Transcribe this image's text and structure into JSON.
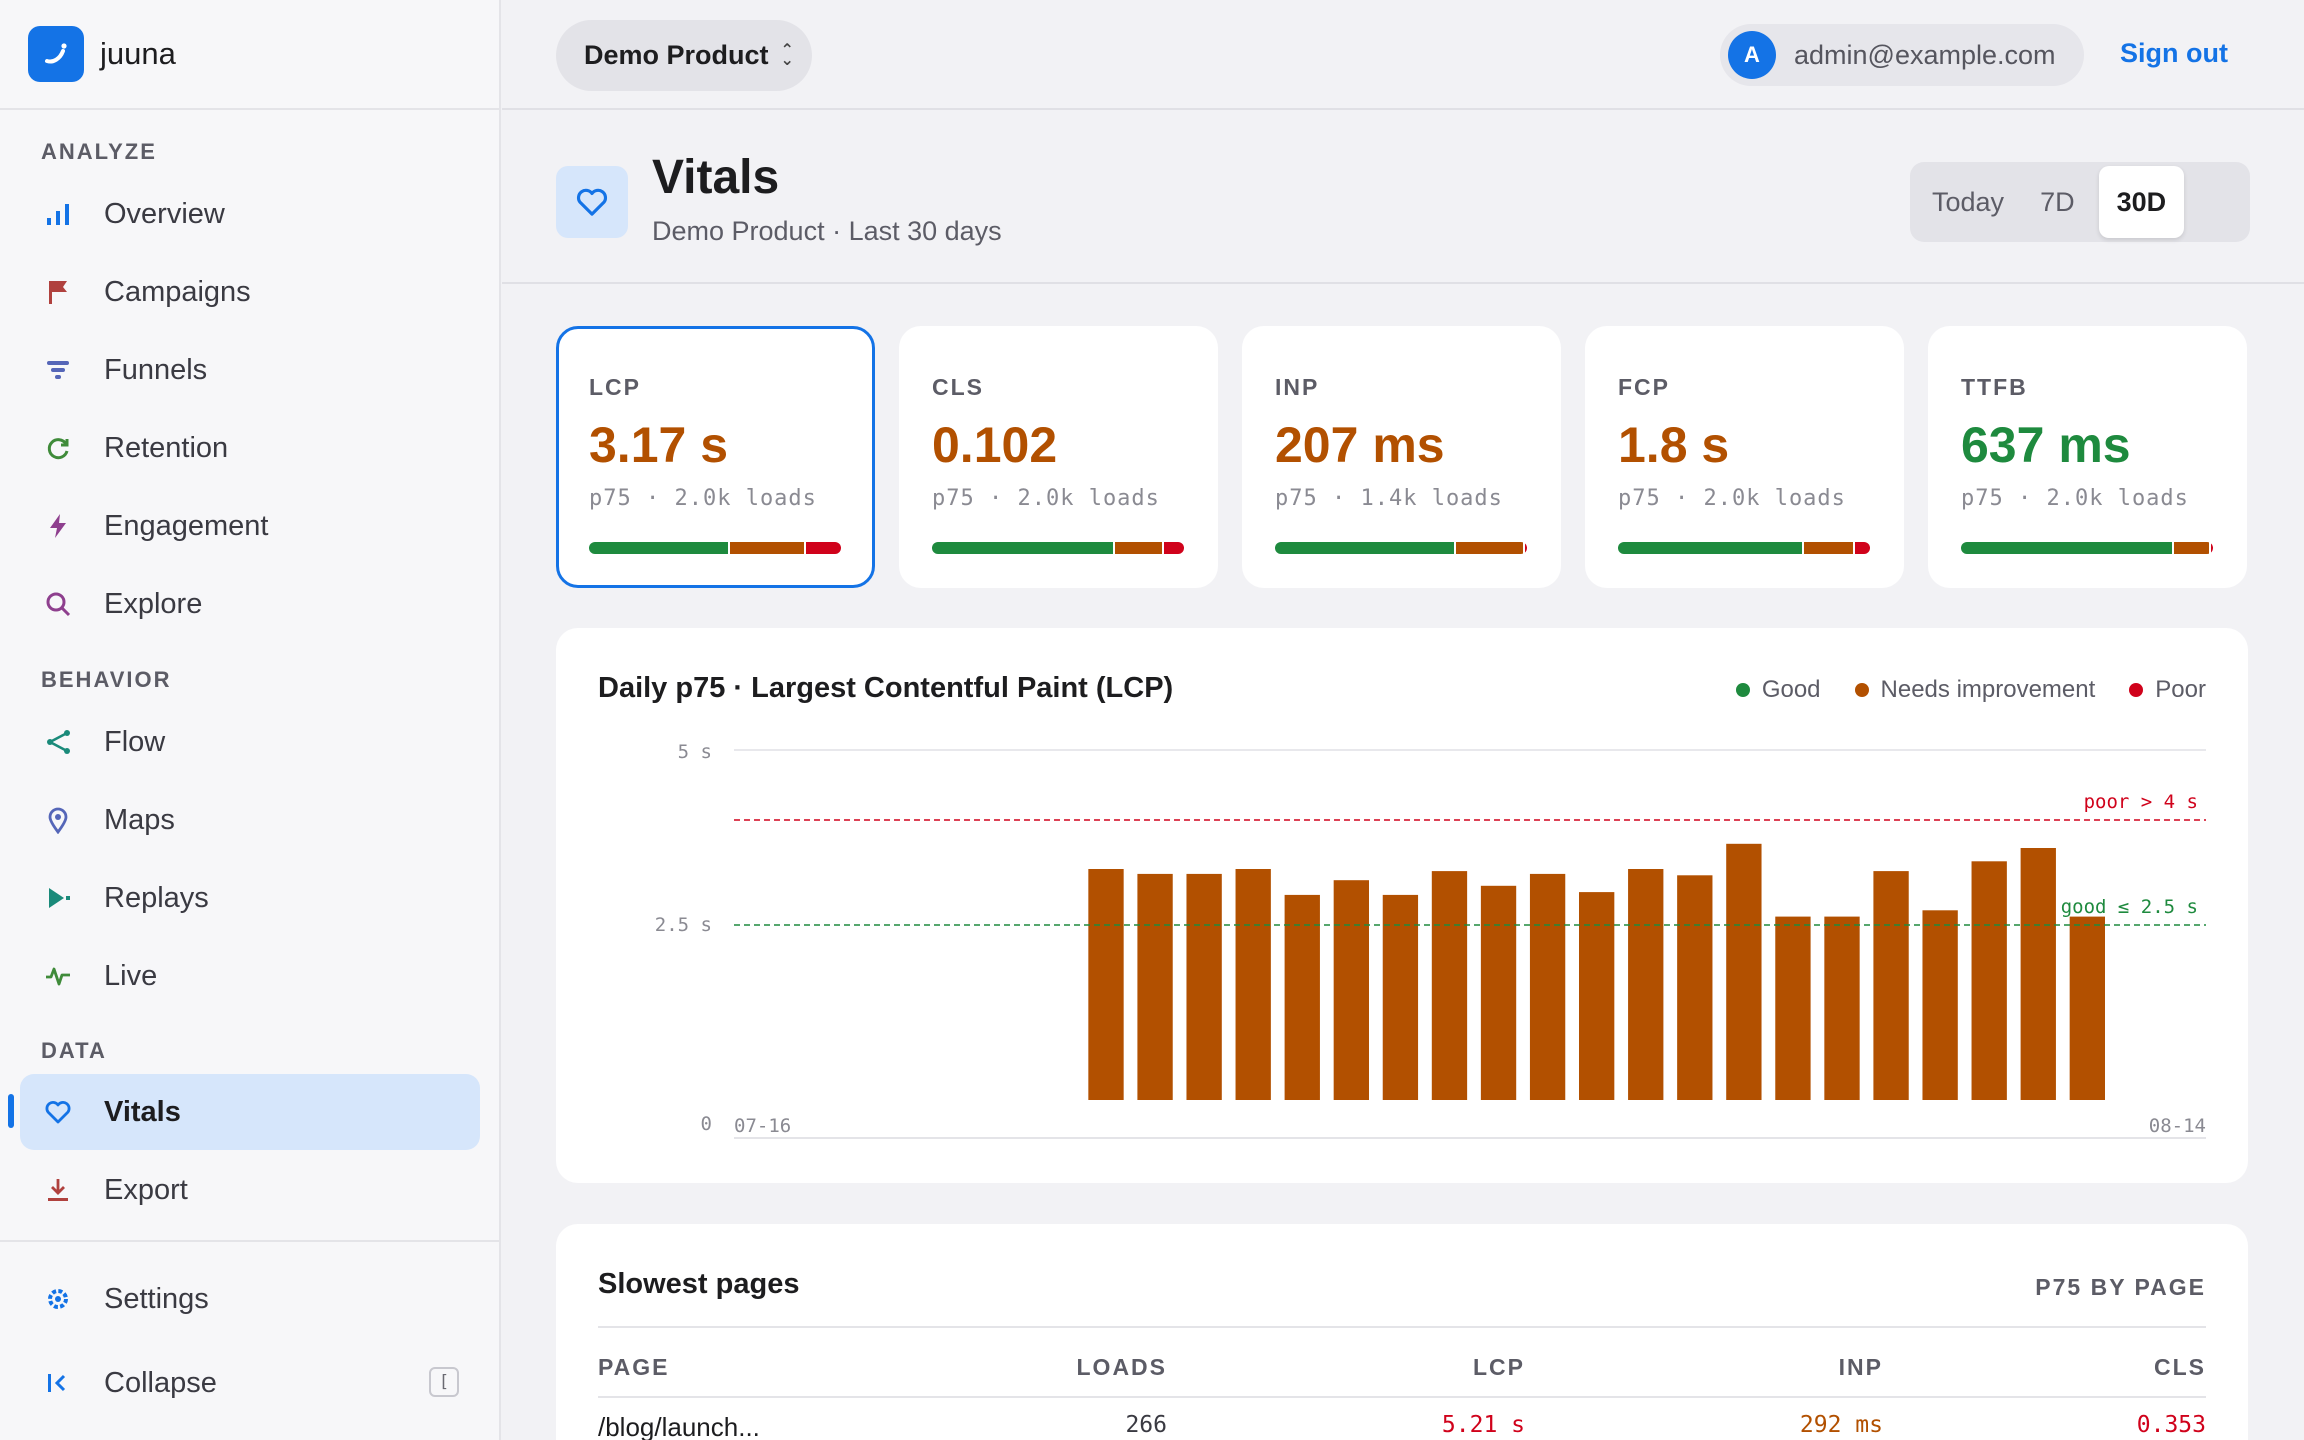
{
  "app": {
    "name": "juuna"
  },
  "sidebar": {
    "sections": {
      "analyze": "ANALYZE",
      "behavior": "BEHAVIOR",
      "data": "DATA"
    },
    "items": {
      "overview": "Overview",
      "campaigns": "Campaigns",
      "funnels": "Funnels",
      "retention": "Retention",
      "engagement": "Engagement",
      "explore": "Explore",
      "flow": "Flow",
      "maps": "Maps",
      "replays": "Replays",
      "live": "Live",
      "vitals": "Vitals",
      "export": "Export",
      "settings": "Settings",
      "collapse": "Collapse"
    },
    "collapse_shortcut": "["
  },
  "topbar": {
    "product": "Demo Product",
    "avatar_initial": "A",
    "email": "admin@example.com",
    "signout": "Sign out"
  },
  "header": {
    "title": "Vitals",
    "subtitle": "Demo Product · Last 30 days",
    "ranges": [
      "Today",
      "7D",
      "30D"
    ],
    "selected_range": "30D"
  },
  "metrics": [
    {
      "key": "LCP",
      "value": "3.17 s",
      "meta": "p75 · 2.0k loads",
      "status": "warn",
      "dist": [
        0.56,
        0.3,
        0.14
      ]
    },
    {
      "key": "CLS",
      "value": "0.102",
      "meta": "p75 · 2.0k loads",
      "status": "warn",
      "dist": [
        0.73,
        0.19,
        0.08
      ]
    },
    {
      "key": "INP",
      "value": "207 ms",
      "meta": "p75 · 1.4k loads",
      "status": "warn",
      "dist": [
        0.72,
        0.27,
        0.01
      ]
    },
    {
      "key": "FCP",
      "value": "1.8 s",
      "meta": "p75 · 2.0k loads",
      "status": "warn",
      "dist": [
        0.74,
        0.2,
        0.06
      ]
    },
    {
      "key": "TTFB",
      "value": "637 ms",
      "meta": "p75 · 2.0k loads",
      "status": "good",
      "dist": [
        0.85,
        0.14,
        0.01
      ]
    }
  ],
  "colors": {
    "good": "#1e8a3e",
    "warn": "#b25000",
    "poor": "#d0021b",
    "accent": "#1473e6"
  },
  "chart": {
    "title": "Daily p75 · Largest Contentful Paint (LCP)",
    "legend": [
      "Good",
      "Needs improvement",
      "Poor"
    ],
    "poor_label": "poor > 4 s",
    "good_label": "good ≤ 2.5 s"
  },
  "chart_data": {
    "type": "bar",
    "title": "Daily p75 · Largest Contentful Paint (LCP)",
    "xlabel": "",
    "ylabel": "",
    "ylim": [
      0,
      5
    ],
    "yticks": [
      "0",
      "2.5 s",
      "5 s"
    ],
    "x_start_label": "07-16",
    "x_end_label": "08-14",
    "total_days": 30,
    "first_data_index": 7,
    "values": [
      3.3,
      3.23,
      3.23,
      3.3,
      2.93,
      3.14,
      2.93,
      3.27,
      3.06,
      3.23,
      2.97,
      3.3,
      3.21,
      3.66,
      2.62,
      2.62,
      3.27,
      2.71,
      3.41,
      3.6,
      2.62
    ],
    "thresholds": {
      "good": 2.5,
      "poor": 4
    }
  },
  "table": {
    "title": "Slowest pages",
    "meta": "P75 BY PAGE",
    "columns": [
      "PAGE",
      "LOADS",
      "LCP",
      "INP",
      "CLS"
    ],
    "rows": [
      {
        "page": "/blog/launch...",
        "loads": "266",
        "lcp": "5.21 s",
        "inp": "292 ms",
        "cls": "0.353"
      }
    ]
  }
}
